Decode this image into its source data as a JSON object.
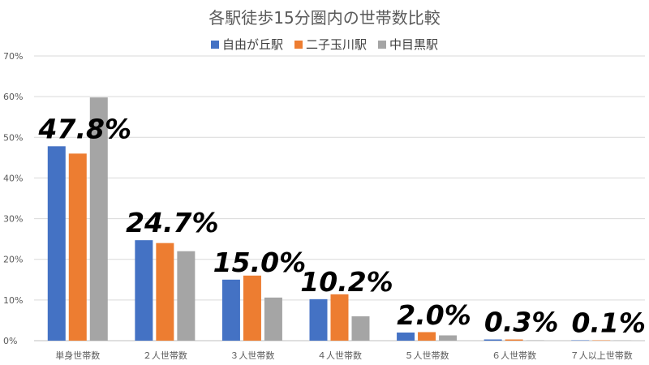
{
  "chart_data": {
    "type": "bar",
    "title": "各駅徒歩15分圏内の世帯数比較",
    "categories": [
      "単身世帯数",
      "２人世帯数",
      "３人世帯数",
      "４人世帯数",
      "５人世帯数",
      "６人世帯数",
      "７人以上世帯数"
    ],
    "series": [
      {
        "name": "自由が丘駅",
        "color": "#4472C4",
        "values": [
          47.8,
          24.7,
          15.0,
          10.2,
          2.0,
          0.3,
          0.1
        ]
      },
      {
        "name": "二子玉川駅",
        "color": "#ED7D31",
        "values": [
          46.0,
          24.0,
          16.0,
          11.4,
          2.1,
          0.3,
          0.1
        ]
      },
      {
        "name": "中目黒駅",
        "color": "#A5A5A5",
        "values": [
          59.8,
          22.0,
          10.6,
          6.0,
          1.3,
          0.1,
          0.05
        ]
      }
    ],
    "data_labels": [
      "47.8%",
      "24.7%",
      "15.0%",
      "10.2%",
      "2.0%",
      "0.3%",
      "0.1%"
    ],
    "y_ticks": [
      "0%",
      "10%",
      "20%",
      "30%",
      "40%",
      "50%",
      "60%",
      "70%"
    ],
    "ylim": [
      0,
      70
    ],
    "grid": true,
    "legend_position": "top"
  }
}
